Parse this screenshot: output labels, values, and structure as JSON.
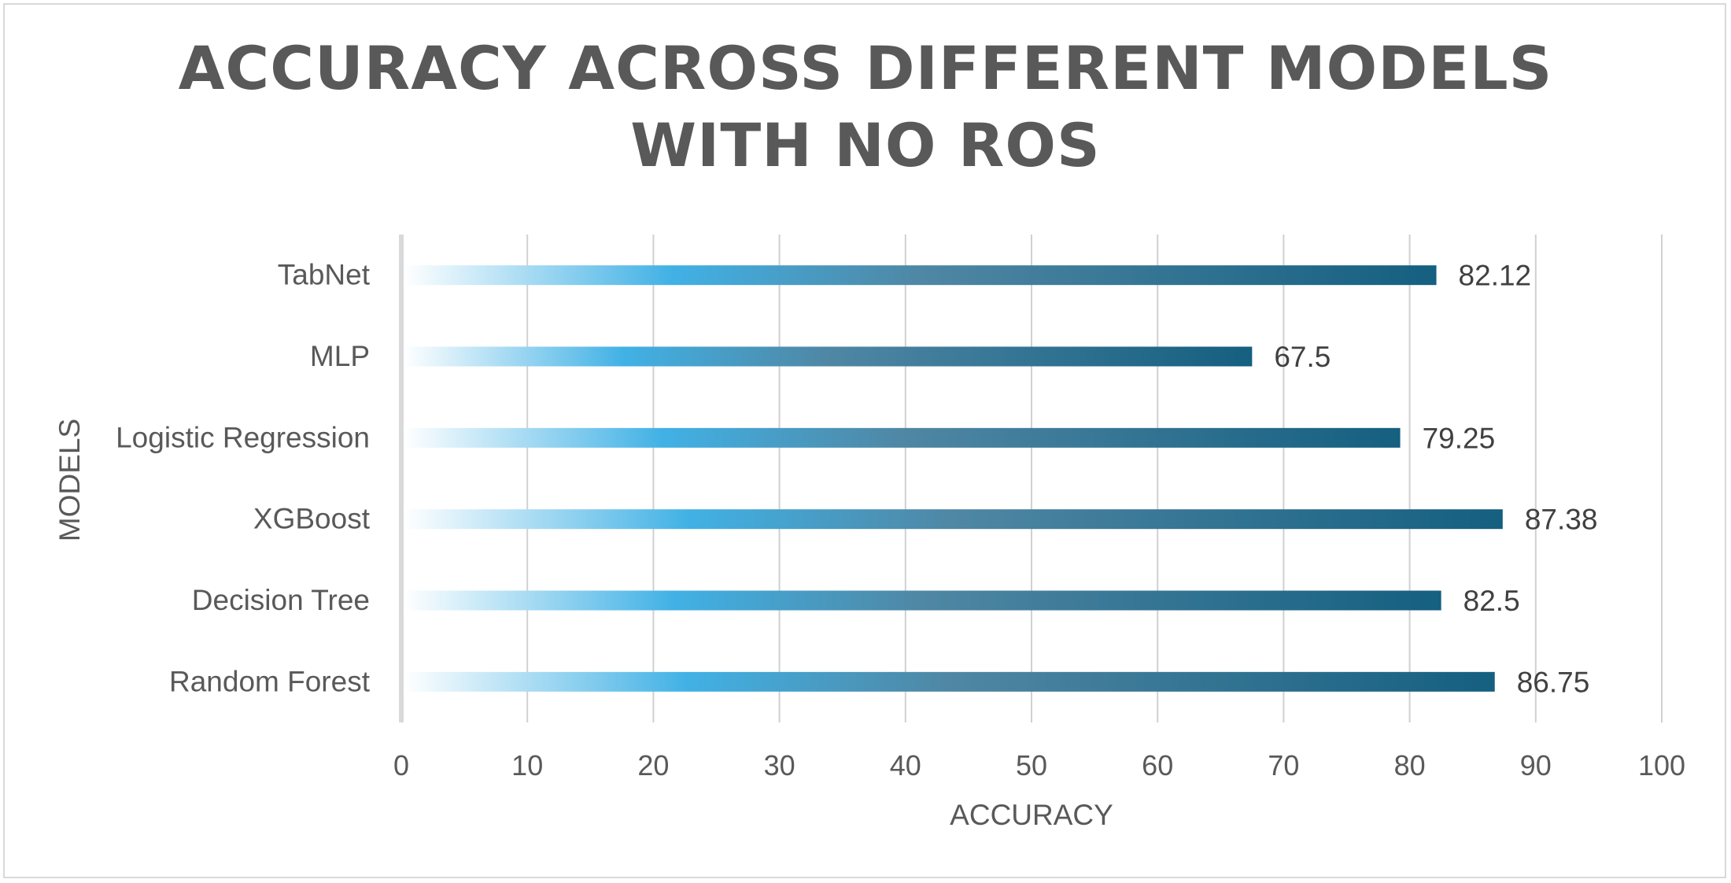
{
  "chart_data": {
    "type": "bar",
    "orientation": "horizontal",
    "title_lines": [
      "ACCURACY ACROSS DIFFERENT MODELS",
      "WITH NO ROS"
    ],
    "xlabel": "ACCURACY",
    "ylabel": "MODELS",
    "categories": [
      "TabNet",
      "MLP",
      "Logistic Regression",
      "XGBoost",
      "Decision Tree",
      "Random Forest"
    ],
    "values": [
      82.12,
      67.5,
      79.25,
      87.38,
      82.5,
      86.75
    ],
    "value_labels": [
      "82.12",
      "67.5",
      "79.25",
      "87.38",
      "82.5",
      "86.75"
    ],
    "xlim": [
      0,
      100
    ],
    "xticks": [
      0,
      10,
      20,
      30,
      40,
      50,
      60,
      70,
      80,
      90,
      100
    ],
    "grid": "vertical",
    "legend": "none",
    "colors": {
      "bar_gradient": [
        "#ffffff",
        "#41b1e5",
        "#4f87a4",
        "#155f80"
      ],
      "gridline": "#d0d0d0",
      "axis_line": "#d9d9d9",
      "text": "#595959"
    }
  }
}
